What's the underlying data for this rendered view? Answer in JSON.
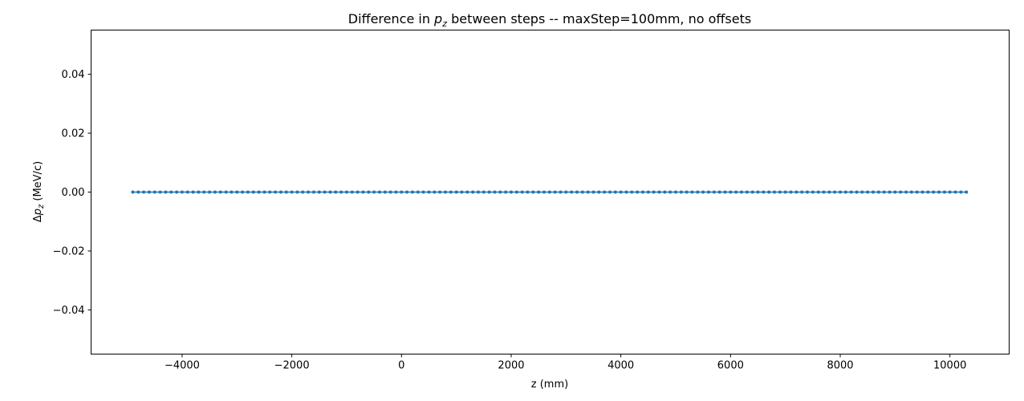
{
  "chart_data": {
    "type": "scatter",
    "title": {
      "prefix": "Difference in ",
      "math_base": "p",
      "math_sub": "z",
      "suffix": " between steps -- maxStep=100mm, no offsets"
    },
    "xlabel": "z (mm)",
    "ylabel": {
      "prefix": "Δ",
      "math_base": "p",
      "math_sub": "z",
      "suffix": " (MeV/c)"
    },
    "xlim": [
      -5660,
      11080
    ],
    "ylim": [
      -0.055,
      0.055
    ],
    "x_ticks": [
      {
        "value": -4000,
        "label": "−4000"
      },
      {
        "value": -2000,
        "label": "−2000"
      },
      {
        "value": 0,
        "label": "0"
      },
      {
        "value": 2000,
        "label": "2000"
      },
      {
        "value": 4000,
        "label": "4000"
      },
      {
        "value": 6000,
        "label": "6000"
      },
      {
        "value": 8000,
        "label": "8000"
      },
      {
        "value": 10000,
        "label": "10000"
      }
    ],
    "y_ticks": [
      {
        "value": 0.04,
        "label": "0.04"
      },
      {
        "value": 0.02,
        "label": "0.02"
      },
      {
        "value": 0.0,
        "label": "0.00"
      },
      {
        "value": -0.02,
        "label": "−0.02"
      },
      {
        "value": -0.04,
        "label": "−0.04"
      }
    ],
    "grid": false,
    "series": [
      {
        "color": "#1f77b4",
        "x_start": -4900,
        "x_end": 10300,
        "x_step": 100,
        "y_constant": 0.0
      }
    ]
  }
}
